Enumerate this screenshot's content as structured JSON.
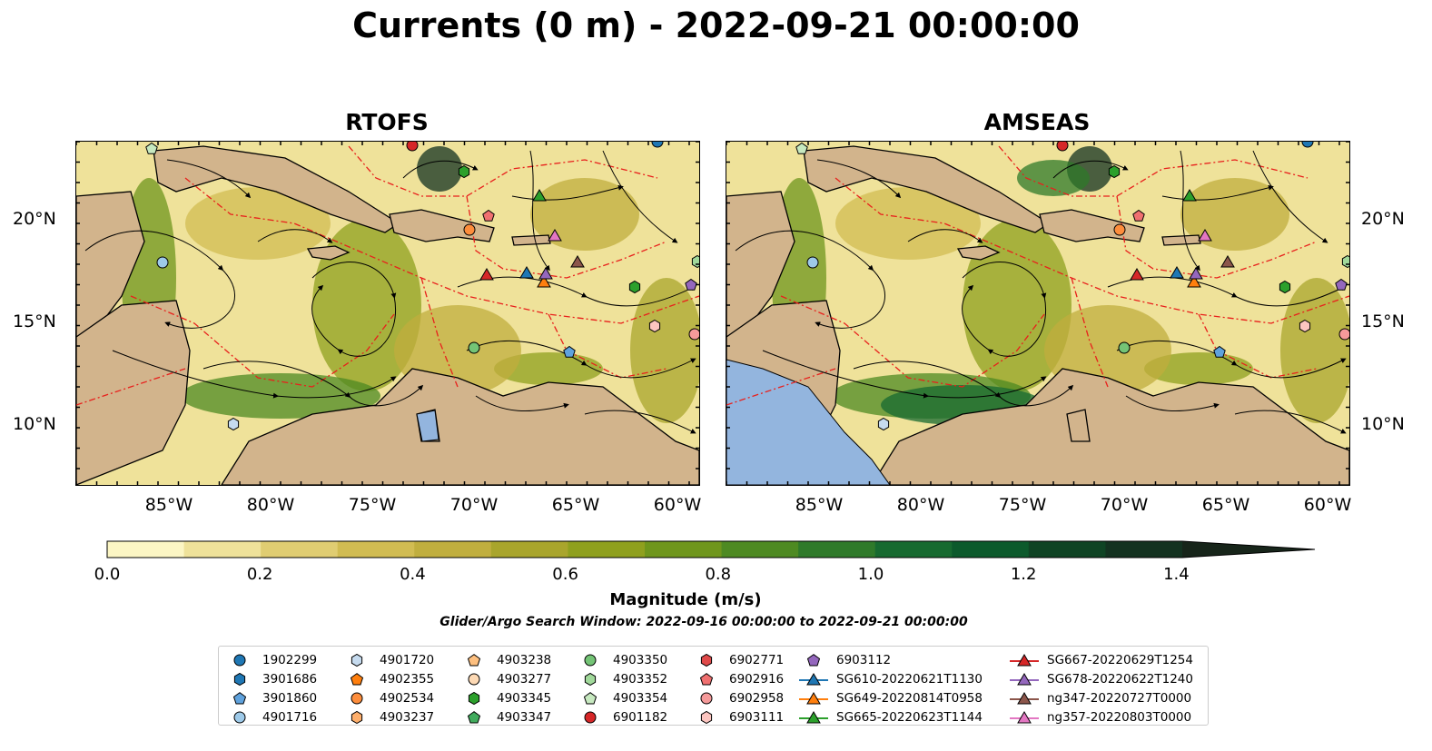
{
  "title": "Currents (0 m) - 2022-09-21 00:00:00",
  "panels": [
    {
      "title": "RTOFS"
    },
    {
      "title": "AMSEAS"
    }
  ],
  "axes": {
    "x_ticks": [
      "85°W",
      "80°W",
      "75°W",
      "70°W",
      "65°W",
      "60°W"
    ],
    "y_ticks": [
      "20°N",
      "15°N",
      "10°N"
    ]
  },
  "colorbar": {
    "label": "Magnitude (m/s)",
    "ticks": [
      "0.0",
      "0.2",
      "0.4",
      "0.6",
      "0.8",
      "1.0",
      "1.2",
      "1.4"
    ],
    "range": [
      0.0,
      1.5
    ],
    "extend": "max",
    "colors": [
      "#fcf6c4",
      "#efe29a",
      "#e0cd72",
      "#d1bc52",
      "#c0ae3e",
      "#a9a52c",
      "#8fa01e",
      "#6f961c",
      "#4e8a22",
      "#2f7a2a",
      "#176a30",
      "#0c5a2c",
      "#0f4424",
      "#133220",
      "#17251a"
    ]
  },
  "search_window": "Glider/Argo Search Window: 2022-09-16 00:00:00 to 2022-09-21 00:00:00",
  "legend": {
    "columns": [
      [
        {
          "label": "1902299",
          "marker": "circle",
          "color": "#1f77b4"
        },
        {
          "label": "3901686",
          "marker": "hexagon",
          "color": "#1f77b4"
        },
        {
          "label": "3901860",
          "marker": "pentagon",
          "color": "#5fa2dd"
        },
        {
          "label": "4901716",
          "marker": "circle",
          "color": "#9ecae9"
        }
      ],
      [
        {
          "label": "4901720",
          "marker": "hexagon",
          "color": "#c6dbef"
        },
        {
          "label": "4902355",
          "marker": "pentagon",
          "color": "#ff7f0e"
        },
        {
          "label": "4902534",
          "marker": "circle",
          "color": "#fd8d3c"
        },
        {
          "label": "4903237",
          "marker": "hexagon",
          "color": "#fdae6b"
        }
      ],
      [
        {
          "label": "4903238",
          "marker": "pentagon",
          "color": "#fdbf7f"
        },
        {
          "label": "4903277",
          "marker": "circle",
          "color": "#fdd9b4"
        },
        {
          "label": "4903345",
          "marker": "hexagon",
          "color": "#2ca02c"
        },
        {
          "label": "4903347",
          "marker": "pentagon",
          "color": "#41ab5d"
        }
      ],
      [
        {
          "label": "4903350",
          "marker": "circle",
          "color": "#74c476"
        },
        {
          "label": "4903352",
          "marker": "hexagon",
          "color": "#a1d99b"
        },
        {
          "label": "4903354",
          "marker": "pentagon",
          "color": "#c7e9c0"
        },
        {
          "label": "6901182",
          "marker": "circle",
          "color": "#d62728"
        }
      ],
      [
        {
          "label": "6902771",
          "marker": "hexagon",
          "color": "#e04a4a"
        },
        {
          "label": "6902916",
          "marker": "pentagon",
          "color": "#f07070"
        },
        {
          "label": "6902958",
          "marker": "circle",
          "color": "#f59a9a"
        },
        {
          "label": "6903111",
          "marker": "hexagon",
          "color": "#fcc5c0"
        }
      ],
      [
        {
          "label": "6903112",
          "marker": "pentagon",
          "color": "#9467bd"
        },
        {
          "label": "SG610-20220621T1130",
          "marker": "triangle-line",
          "color": "#1f77b4"
        },
        {
          "label": "SG649-20220814T0958",
          "marker": "triangle-line",
          "color": "#ff7f0e"
        },
        {
          "label": "SG665-20220623T1144",
          "marker": "triangle-line",
          "color": "#2ca02c"
        }
      ],
      [
        {
          "label": "SG667-20220629T1254",
          "marker": "triangle-line",
          "color": "#d62728"
        },
        {
          "label": "SG678-20220622T1240",
          "marker": "triangle-line",
          "color": "#9467bd"
        },
        {
          "label": "ng347-20220727T0000",
          "marker": "triangle-line",
          "color": "#8c564b"
        },
        {
          "label": "ng357-20220803T0000",
          "marker": "triangle-line",
          "color": "#e377c2"
        }
      ]
    ]
  }
}
